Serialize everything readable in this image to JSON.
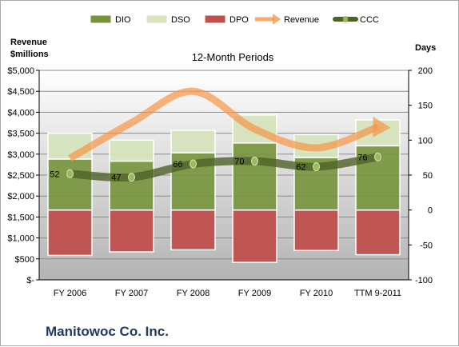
{
  "chart_data": {
    "type": "bar",
    "title": "12-Month Periods",
    "left_axis_label": "Revenue $millions",
    "right_axis_label": "Days",
    "categories": [
      "FY 2006",
      "FY 2007",
      "FY 2008",
      "FY 2009",
      "FY 2010",
      "TTM 9-2011"
    ],
    "left_ylim": [
      0,
      5000
    ],
    "left_ticks": [
      "$-",
      "$500",
      "$1,000",
      "$1,500",
      "$2,000",
      "$2,500",
      "$3,000",
      "$3,500",
      "$4,000",
      "$4,500",
      "$5,000"
    ],
    "right_ylim": [
      -100,
      200
    ],
    "right_ticks": [
      "-100",
      "-50",
      "0",
      "50",
      "100",
      "150",
      "200"
    ],
    "legend_position": "top",
    "series": [
      {
        "name": "DIO",
        "kind": "bar-stack",
        "axis": "right",
        "values": [
          73,
          70,
          82,
          96,
          75,
          92
        ],
        "color": "#77933c"
      },
      {
        "name": "DSO",
        "kind": "bar-stack",
        "axis": "right",
        "values": [
          37,
          30,
          32,
          40,
          33,
          37
        ],
        "color": "#d7e4bd"
      },
      {
        "name": "DPO",
        "kind": "bar-negative",
        "axis": "right",
        "values": [
          -65,
          -60,
          -57,
          -75,
          -58,
          -64
        ],
        "color": "#c0504d"
      },
      {
        "name": "Revenue",
        "kind": "line",
        "axis": "left",
        "values": [
          2900,
          3750,
          4500,
          3600,
          3150,
          3650
        ],
        "color": "#f79646"
      },
      {
        "name": "CCC",
        "kind": "line",
        "axis": "right",
        "values": [
          52,
          47,
          66,
          70,
          62,
          76
        ],
        "color": "#4f6228"
      }
    ],
    "data_labels": [
      "52",
      "47",
      "66",
      "70",
      "62",
      "76"
    ]
  },
  "footer": {
    "company": "Manitowoc Co. Inc."
  }
}
